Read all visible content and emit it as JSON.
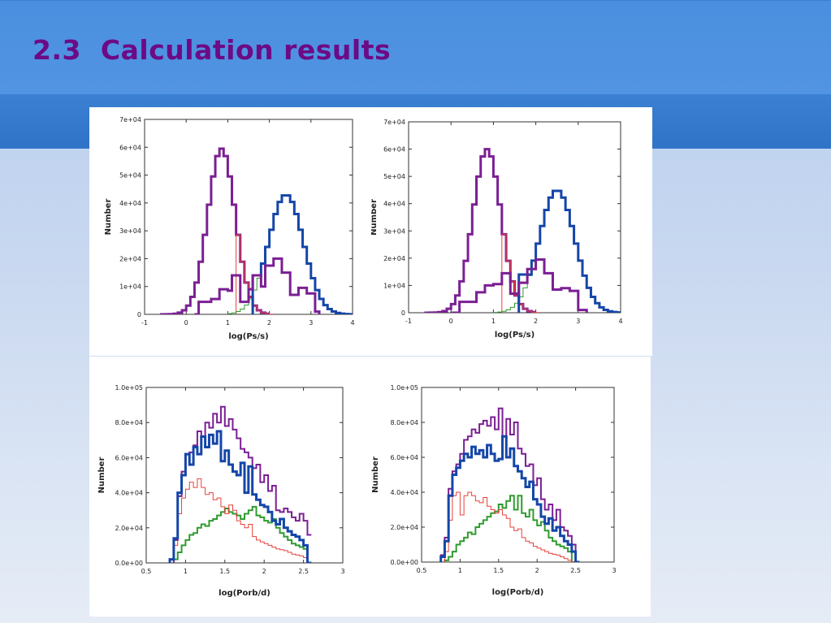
{
  "slide": {
    "title": "2.3  Calculation results"
  },
  "colors": {
    "title": "#6d0a85",
    "purple": "#7b1f93",
    "blue": "#1446a8",
    "red": "#e8413a",
    "green": "#2f9b2f"
  },
  "chart_data": [
    {
      "type": "line",
      "id": "ps-left",
      "xlabel": "log(Ps/s)",
      "ylabel": "Number",
      "xlim": [
        -1,
        4
      ],
      "ylim": [
        0,
        70000
      ],
      "xticks": [
        -1,
        0,
        1,
        2,
        3,
        4
      ],
      "xtick_labels": [
        "-1",
        "0",
        "1",
        "2",
        "3",
        "4"
      ],
      "yticks": [
        0,
        10000,
        20000,
        30000,
        40000,
        50000,
        60000,
        70000
      ],
      "ytick_labels": [
        "0",
        "1e+04",
        "2e+04",
        "3e+04",
        "4e+04",
        "5e+04",
        "6e+04",
        "7e+04"
      ],
      "series": [
        {
          "color": "purple",
          "width": 3,
          "step": true,
          "curve": "gauss",
          "mu": 0.85,
          "sigma": 0.33,
          "amp": 59500,
          "xmin": -0.6,
          "xmax": 1.9,
          "dx": 0.1
        },
        {
          "color": "red",
          "width": 1,
          "step": true,
          "curve": "gauss",
          "mu": 0.85,
          "sigma": 0.33,
          "amp": 59500,
          "xmin": 1.2,
          "xmax": 2.0,
          "dx": 0.1
        },
        {
          "color": "green",
          "width": 1,
          "step": true,
          "curve": "gauss",
          "mu": 2.4,
          "sigma": 0.42,
          "amp": 43000,
          "xmin": 1.0,
          "xmax": 2.0,
          "dx": 0.1
        },
        {
          "color": "blue",
          "width": 3,
          "step": true,
          "curve": "gauss",
          "mu": 2.4,
          "sigma": 0.42,
          "amp": 43000,
          "xmin": 1.6,
          "xmax": 4.0,
          "dx": 0.1,
          "floor": 14000
        },
        {
          "color": "purple",
          "width": 3,
          "step": true,
          "x": [
            0.2,
            0.3,
            0.6,
            0.8,
            1.0,
            1.1,
            1.3,
            1.5,
            1.6,
            1.8,
            1.9,
            2.1,
            2.3,
            2.5,
            2.7,
            2.9,
            3.1,
            3.2
          ],
          "y": [
            0,
            4500,
            5500,
            9000,
            8500,
            14000,
            4500,
            9000,
            14000,
            10000,
            17500,
            20000,
            15000,
            7000,
            9500,
            7500,
            1000,
            0
          ]
        }
      ]
    },
    {
      "type": "line",
      "id": "ps-right",
      "xlabel": "log(Ps/s)",
      "ylabel": "Number",
      "xlim": [
        -1,
        4
      ],
      "ylim": [
        0,
        70000
      ],
      "xticks": [
        -1,
        0,
        1,
        2,
        3,
        4
      ],
      "xtick_labels": [
        "-1",
        "0",
        "1",
        "2",
        "3",
        "4"
      ],
      "yticks": [
        0,
        10000,
        20000,
        30000,
        40000,
        50000,
        60000,
        70000
      ],
      "ytick_labels": [
        "0",
        "1e+04",
        "2e+04",
        "3e+04",
        "4e+04",
        "5e+04",
        "6e+04",
        "7e+04"
      ],
      "series": [
        {
          "color": "purple",
          "width": 3,
          "step": true,
          "curve": "gauss",
          "mu": 0.85,
          "sigma": 0.33,
          "amp": 60000,
          "xmin": -0.6,
          "xmax": 1.9,
          "dx": 0.1
        },
        {
          "color": "red",
          "width": 1,
          "step": true,
          "curve": "gauss",
          "mu": 0.85,
          "sigma": 0.33,
          "amp": 60000,
          "xmin": 1.2,
          "xmax": 2.0,
          "dx": 0.1
        },
        {
          "color": "green",
          "width": 1,
          "step": true,
          "curve": "gauss",
          "mu": 2.5,
          "sigma": 0.42,
          "amp": 45000,
          "xmin": 1.0,
          "xmax": 2.0,
          "dx": 0.1
        },
        {
          "color": "blue",
          "width": 3,
          "step": true,
          "curve": "gauss",
          "mu": 2.5,
          "sigma": 0.42,
          "amp": 45000,
          "xmin": 1.6,
          "xmax": 4.0,
          "dx": 0.1,
          "floor": 14000
        },
        {
          "color": "purple",
          "width": 3,
          "step": true,
          "x": [
            0.0,
            0.2,
            0.6,
            0.8,
            1.0,
            1.2,
            1.4,
            1.6,
            1.8,
            2.0,
            2.2,
            2.4,
            2.6,
            2.8,
            3.0,
            3.2
          ],
          "y": [
            0,
            4000,
            7500,
            10000,
            10500,
            14500,
            7000,
            11000,
            16000,
            19500,
            14500,
            8500,
            9000,
            8000,
            1000,
            0
          ]
        }
      ]
    },
    {
      "type": "line",
      "id": "porb-left",
      "xlabel": "log(Porb/d)",
      "ylabel": "Number",
      "xlim": [
        0.5,
        3
      ],
      "ylim": [
        0,
        100000
      ],
      "xticks": [
        0.5,
        1,
        1.5,
        2,
        2.5,
        3
      ],
      "xtick_labels": [
        "0.5",
        "1",
        "1.5",
        "2",
        "2.5",
        "3"
      ],
      "yticks": [
        0,
        20000,
        40000,
        60000,
        80000,
        100000
      ],
      "ytick_labels": [
        "0.0e+00",
        "2.0e+04",
        "4.0e+04",
        "6.0e+04",
        "8.0e+04",
        "1.0e+05"
      ],
      "series": [
        {
          "color": "green",
          "width": 2,
          "step": true,
          "x0": 0.85,
          "dx": 0.05,
          "y": [
            2000,
            6000,
            10000,
            13000,
            16000,
            17000,
            20000,
            22000,
            21000,
            24000,
            25000,
            27000,
            29000,
            31000,
            29000,
            28000,
            27000,
            25000,
            28000,
            30000,
            32000,
            27000,
            26000,
            24000,
            23000,
            25000,
            20000,
            17000,
            15000,
            13000,
            11000,
            10000,
            9000,
            8000,
            0
          ]
        },
        {
          "color": "red",
          "width": 1,
          "step": true,
          "x0": 0.85,
          "dx": 0.05,
          "y": [
            10000,
            28000,
            37000,
            42000,
            46000,
            43000,
            48000,
            43000,
            39000,
            40000,
            36000,
            37000,
            32000,
            28000,
            33000,
            30000,
            24000,
            22000,
            20000,
            22000,
            15000,
            13000,
            12000,
            11000,
            10000,
            9000,
            8000,
            7500,
            7000,
            6000,
            5000,
            4500,
            4000,
            3000,
            0
          ]
        },
        {
          "color": "purple",
          "width": 2,
          "step": true,
          "x0": 0.85,
          "dx": 0.05,
          "y": [
            13000,
            38000,
            52000,
            62000,
            63000,
            67000,
            75000,
            72000,
            80000,
            77000,
            85000,
            80000,
            89000,
            78000,
            82000,
            76000,
            71000,
            65000,
            63000,
            60000,
            54000,
            56000,
            46000,
            50000,
            41000,
            44000,
            30000,
            29000,
            31000,
            29000,
            26000,
            24000,
            28000,
            24000,
            16000
          ]
        },
        {
          "color": "blue",
          "width": 3,
          "step": true,
          "x0": 0.8,
          "dx": 0.05,
          "y": [
            2000,
            14000,
            40000,
            50000,
            62000,
            56000,
            66000,
            62000,
            72000,
            66000,
            73000,
            68000,
            75000,
            58000,
            64000,
            56000,
            52000,
            50000,
            57000,
            40000,
            55000,
            39000,
            36000,
            33000,
            32000,
            29000,
            24000,
            22000,
            25000,
            20000,
            18000,
            16000,
            15000,
            13000,
            10000,
            0
          ]
        }
      ]
    },
    {
      "type": "line",
      "id": "porb-right",
      "xlabel": "log(Porb/d)",
      "ylabel": "Number",
      "xlim": [
        0.5,
        3
      ],
      "ylim": [
        0,
        100000
      ],
      "xticks": [
        0.5,
        1,
        1.5,
        2,
        2.5,
        3
      ],
      "xtick_labels": [
        "0.5",
        "1",
        "1.5",
        "2",
        "2.5",
        "3"
      ],
      "yticks": [
        0,
        20000,
        40000,
        60000,
        80000,
        100000
      ],
      "ytick_labels": [
        "0.0e+00",
        "2.0e+04",
        "4.0e+04",
        "6.0e+04",
        "8.0e+04",
        "1.0e+05"
      ],
      "series": [
        {
          "color": "green",
          "width": 2,
          "step": true,
          "x0": 0.8,
          "dx": 0.05,
          "y": [
            1000,
            3000,
            6000,
            10000,
            12000,
            14000,
            17000,
            16000,
            20000,
            22000,
            24000,
            26000,
            28000,
            29000,
            33000,
            31000,
            35000,
            38000,
            30000,
            38000,
            28000,
            26000,
            30000,
            24000,
            21000,
            23000,
            18000,
            14000,
            12000,
            10000,
            9000,
            8000,
            6000,
            0
          ]
        },
        {
          "color": "red",
          "width": 1,
          "step": true,
          "x0": 0.8,
          "dx": 0.05,
          "y": [
            6000,
            24000,
            38000,
            40000,
            27000,
            38000,
            40000,
            38000,
            35000,
            34000,
            37000,
            32000,
            30000,
            28000,
            30000,
            27000,
            25000,
            20000,
            18000,
            19000,
            14000,
            12000,
            11000,
            9000,
            8000,
            7000,
            6000,
            5000,
            4500,
            4000,
            3000,
            2000,
            1000,
            0
          ]
        },
        {
          "color": "purple",
          "width": 2,
          "step": true,
          "x0": 0.75,
          "dx": 0.05,
          "y": [
            4000,
            14000,
            42000,
            52000,
            56000,
            62000,
            70000,
            72000,
            76000,
            74000,
            79000,
            81000,
            78000,
            83000,
            76000,
            88000,
            72000,
            82000,
            73000,
            80000,
            65000,
            62000,
            55000,
            56000,
            44000,
            48000,
            36000,
            30000,
            33000,
            24000,
            30000,
            20000,
            18000,
            15000,
            10000,
            0
          ]
        },
        {
          "color": "blue",
          "width": 3,
          "step": true,
          "x0": 0.75,
          "dx": 0.05,
          "y": [
            3000,
            12000,
            38000,
            50000,
            54000,
            58000,
            62000,
            60000,
            66000,
            62000,
            64000,
            60000,
            67000,
            62000,
            58000,
            59000,
            72000,
            60000,
            65000,
            55000,
            52000,
            48000,
            43000,
            46000,
            36000,
            33000,
            26000,
            22000,
            25000,
            18000,
            20000,
            15000,
            12000,
            10000,
            6000,
            0
          ]
        }
      ]
    }
  ]
}
